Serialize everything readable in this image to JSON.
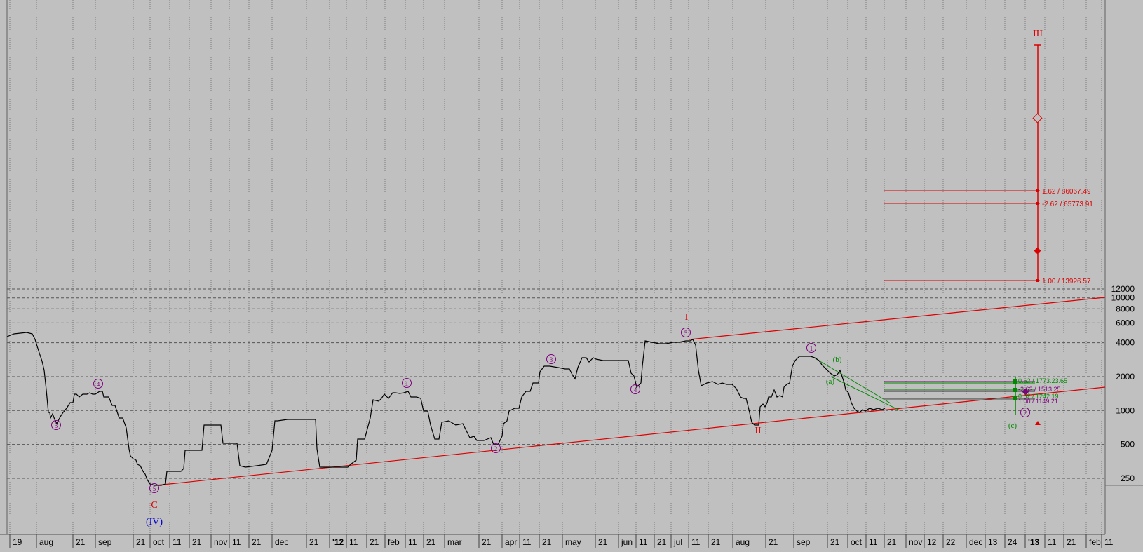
{
  "chart_data": {
    "type": "line",
    "y_scale": "log",
    "ylim": [
      170,
      200000
    ],
    "grid": "vertical-dotted",
    "price_levels": [
      250,
      500,
      1000,
      2000,
      4000,
      6000,
      8000,
      10000,
      12000
    ],
    "price_level_labels": [
      "250",
      "500",
      "1000",
      "2000",
      "4000",
      "6000",
      "8000",
      "10000",
      "12000"
    ],
    "time_axis": [
      {
        "label": "19"
      },
      {
        "label": "aug"
      },
      {
        "label": "21"
      },
      {
        "label": "sep"
      },
      {
        "label": "21"
      },
      {
        "label": "oct"
      },
      {
        "label": "11"
      },
      {
        "label": "21"
      },
      {
        "label": "nov"
      },
      {
        "label": "11"
      },
      {
        "label": "21"
      },
      {
        "label": "dec"
      },
      {
        "label": "21"
      },
      {
        "label": "'12"
      },
      {
        "label": "11"
      },
      {
        "label": "21"
      },
      {
        "label": "feb"
      },
      {
        "label": "11"
      },
      {
        "label": "21"
      },
      {
        "label": "mar"
      },
      {
        "label": "21"
      },
      {
        "label": "apr"
      },
      {
        "label": "11"
      },
      {
        "label": "21"
      },
      {
        "label": "may"
      },
      {
        "label": "21"
      },
      {
        "label": "jun"
      },
      {
        "label": "11"
      },
      {
        "label": "21"
      },
      {
        "label": "jul"
      },
      {
        "label": "11"
      },
      {
        "label": "21"
      },
      {
        "label": "aug"
      },
      {
        "label": "21"
      },
      {
        "label": "sep"
      },
      {
        "label": "21"
      },
      {
        "label": "oct"
      },
      {
        "label": "11"
      },
      {
        "label": "21"
      },
      {
        "label": "nov"
      },
      {
        "label": "12"
      },
      {
        "label": "22"
      },
      {
        "label": "dec"
      },
      {
        "label": "13"
      },
      {
        "label": "24"
      },
      {
        "label": "'13"
      },
      {
        "label": "11"
      },
      {
        "label": "21"
      },
      {
        "label": "feb"
      },
      {
        "label": "11"
      }
    ],
    "fib_levels_red": [
      {
        "label": "1.62 / 86067.49",
        "value": 86067.49
      },
      {
        "label": "-2.62 / 65773.91",
        "value": 65773.91
      },
      {
        "label": "1.00 / 13926.57",
        "value": 13926.57
      }
    ],
    "fib_levels_green": [
      {
        "label": "0.62 / 1773.23.65"
      },
      {
        "label": "-2.62 / 1513.25"
      },
      {
        "label": "0.62 / 1242.19"
      },
      {
        "label": "1.00 / 1149.21"
      }
    ],
    "wave_labels": [
      {
        "label": "3",
        "style": "circle-purple"
      },
      {
        "label": "4",
        "style": "circle-purple"
      },
      {
        "label": "5",
        "style": "circle-purple"
      },
      {
        "label": "C",
        "style": "red"
      },
      {
        "label": "(IV)",
        "style": "blue"
      },
      {
        "label": "1",
        "style": "circle-purple"
      },
      {
        "label": "3",
        "style": "circle-purple"
      },
      {
        "label": "2",
        "style": "circle-purple"
      },
      {
        "label": "4",
        "style": "circle-purple"
      },
      {
        "label": "5",
        "style": "circle-purple"
      },
      {
        "label": "I",
        "style": "red-roman"
      },
      {
        "label": "II",
        "style": "red-roman"
      },
      {
        "label": "1",
        "style": "circle-purple"
      },
      {
        "label": "(b)",
        "style": "green"
      },
      {
        "label": "(a)",
        "style": "green"
      },
      {
        "label": "(c)",
        "style": "green"
      },
      {
        "label": "2",
        "style": "circle-purple"
      },
      {
        "label": "III",
        "style": "red-roman"
      }
    ],
    "colors": {
      "background": "#c0c0c0",
      "price_line": "#000000",
      "trendline": "#dd0000",
      "green": "#008800",
      "purple": "#800080",
      "blue": "#0000cc",
      "grid": "#555555"
    }
  }
}
